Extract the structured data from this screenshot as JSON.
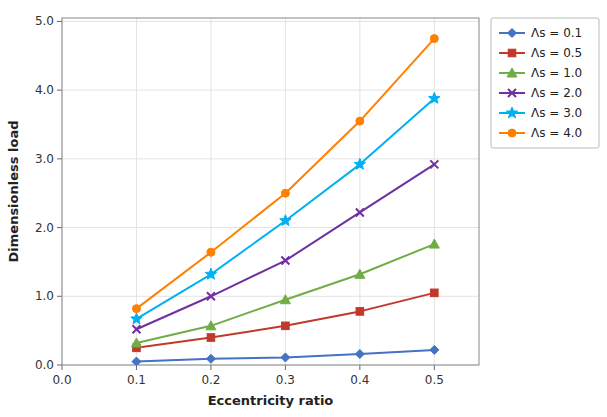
{
  "chart_data": {
    "type": "line",
    "x": [
      0.1,
      0.2,
      0.3,
      0.4,
      0.5
    ],
    "series": [
      {
        "name": "Λs = 0.1",
        "color": "#4472C4",
        "marker": "diamond",
        "values": [
          0.05,
          0.09,
          0.11,
          0.16,
          0.22
        ]
      },
      {
        "name": "Λs = 0.5",
        "color": "#C0392B",
        "marker": "square",
        "values": [
          0.25,
          0.4,
          0.57,
          0.78,
          1.05
        ]
      },
      {
        "name": "Λs = 1.0",
        "color": "#70AD47",
        "marker": "triangle",
        "values": [
          0.32,
          0.57,
          0.95,
          1.32,
          1.76
        ]
      },
      {
        "name": "Λs = 2.0",
        "color": "#7030A0",
        "marker": "x",
        "values": [
          0.52,
          1.0,
          1.52,
          2.22,
          2.92
        ]
      },
      {
        "name": "Λs = 3.0",
        "color": "#00B0F0",
        "marker": "star",
        "values": [
          0.67,
          1.32,
          2.1,
          2.92,
          3.88
        ]
      },
      {
        "name": "Λs = 4.0",
        "color": "#FF8000",
        "marker": "circle",
        "values": [
          0.82,
          1.64,
          2.5,
          3.55,
          4.75
        ]
      }
    ],
    "xlabel": "Eccentricity ratio",
    "ylabel": "Dimensionless load",
    "xlim": [
      0.0,
      0.56
    ],
    "ylim": [
      0.0,
      5.05
    ],
    "xticks": [
      {
        "value": 0.0,
        "label": "0.0"
      },
      0.1,
      0.2,
      0.3,
      0.4,
      0.5
    ],
    "yticks": [
      {
        "value": 0.0,
        "label": "0.0"
      },
      {
        "value": 1.0,
        "label": "1.0"
      },
      {
        "value": 2.0,
        "label": "2.0"
      },
      {
        "value": 3.0,
        "label": "3.0"
      },
      {
        "value": 4.0,
        "label": "4.0"
      },
      {
        "value": 5.0,
        "label": "5.0"
      }
    ],
    "grid": true,
    "legend": "right"
  }
}
